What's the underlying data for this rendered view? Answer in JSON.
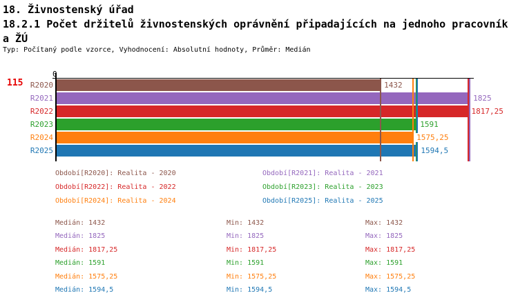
{
  "header": {
    "line1": "18. Živnostenský úřad",
    "line2": "18.2.1 Počet držitelů živnostenských oprávnění připadajících na jednoho pracovník",
    "line3": "a ŽÚ",
    "meta": "Typ: Počítaný podle vzorce, Vyhodnocení: Absolutní hodnoty, Průměr: Medián"
  },
  "row_count": "115",
  "chart_data": {
    "type": "bar",
    "orientation": "horizontal",
    "title": "18.2.1 Počet držitelů živnostenských oprávnění připadajících na jednoho pracovníka ŽÚ",
    "axis_origin_label": "0",
    "xlim": [
      0,
      1843
    ],
    "grid": false,
    "legend_position": "below",
    "categories": [
      "R2020",
      "R2021",
      "R2022",
      "R2023",
      "R2024",
      "R2025"
    ],
    "values": [
      1432,
      1825,
      1817.25,
      1591,
      1575.25,
      1594.5
    ],
    "value_labels": [
      "1432",
      "1825",
      "1817,25",
      "1591",
      "1575,25",
      "1594,5"
    ],
    "bar_colors": [
      "#8c564b",
      "#9467bd",
      "#d62728",
      "#2ca02c",
      "#ff7f0e",
      "#1f77b4"
    ],
    "value_marker_lines": [
      {
        "value": 1432,
        "color": "#8c564b"
      },
      {
        "value": 1825,
        "color": "#9467bd"
      },
      {
        "value": 1817.25,
        "color": "#d62728"
      },
      {
        "value": 1591,
        "color": "#2ca02c"
      },
      {
        "value": 1575.25,
        "color": "#ff7f0e"
      },
      {
        "value": 1594.5,
        "color": "#1f77b4"
      }
    ]
  },
  "legend": {
    "items": [
      {
        "label": "Období[R2020]: Realita - 2020",
        "color": "#8c564b",
        "series": "R2020"
      },
      {
        "label": "Období[R2021]: Realita - 2021",
        "color": "#9467bd",
        "series": "R2021"
      },
      {
        "label": "Období[R2022]: Realita - 2022",
        "color": "#d62728",
        "series": "R2022"
      },
      {
        "label": "Období[R2023]: Realita - 2023",
        "color": "#2ca02c",
        "series": "R2023"
      },
      {
        "label": "Období[R2024]: Realita - 2024",
        "color": "#ff7f0e",
        "series": "R2024"
      },
      {
        "label": "Období[R2025]: Realita - 2025",
        "color": "#1f77b4",
        "series": "R2025"
      }
    ]
  },
  "stats": {
    "median_label": "Medián",
    "min_label": "Min",
    "max_label": "Max",
    "rows": [
      {
        "series": "R2020",
        "color": "#8c564b",
        "median": "1432",
        "min": "1432",
        "max": "1432"
      },
      {
        "series": "R2021",
        "color": "#9467bd",
        "median": "1825",
        "min": "1825",
        "max": "1825"
      },
      {
        "series": "R2022",
        "color": "#d62728",
        "median": "1817,25",
        "min": "1817,25",
        "max": "1817,25"
      },
      {
        "series": "R2023",
        "color": "#2ca02c",
        "median": "1591",
        "min": "1591",
        "max": "1591"
      },
      {
        "series": "R2024",
        "color": "#ff7f0e",
        "median": "1575,25",
        "min": "1575,25",
        "max": "1575,25"
      },
      {
        "series": "R2025",
        "color": "#1f77b4",
        "median": "1594,5",
        "min": "1594,5",
        "max": "1594,5"
      }
    ]
  }
}
